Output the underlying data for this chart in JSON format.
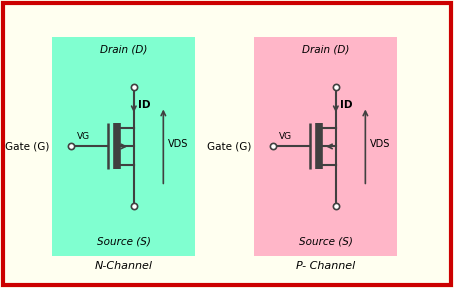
{
  "bg_color": "#FFFFF0",
  "border_color": "#CC0000",
  "n_channel": {
    "bg_color": "#80FFD0",
    "label": "N-Channel",
    "drain_label": "Drain (D)",
    "source_label": "Source (S)",
    "vg_label": "VG",
    "id_label": "ID",
    "vds_label": "VDS",
    "gate_label": "Gate (G)"
  },
  "p_channel": {
    "bg_color": "#FFB6C8",
    "label": "P- Channel",
    "drain_label": "Drain (D)",
    "source_label": "Source (S)",
    "vg_label": "VG",
    "id_label": "ID",
    "vds_label": "VDS",
    "gate_label": "Gate (G)"
  },
  "line_color": "#404040",
  "text_color": "#000000"
}
